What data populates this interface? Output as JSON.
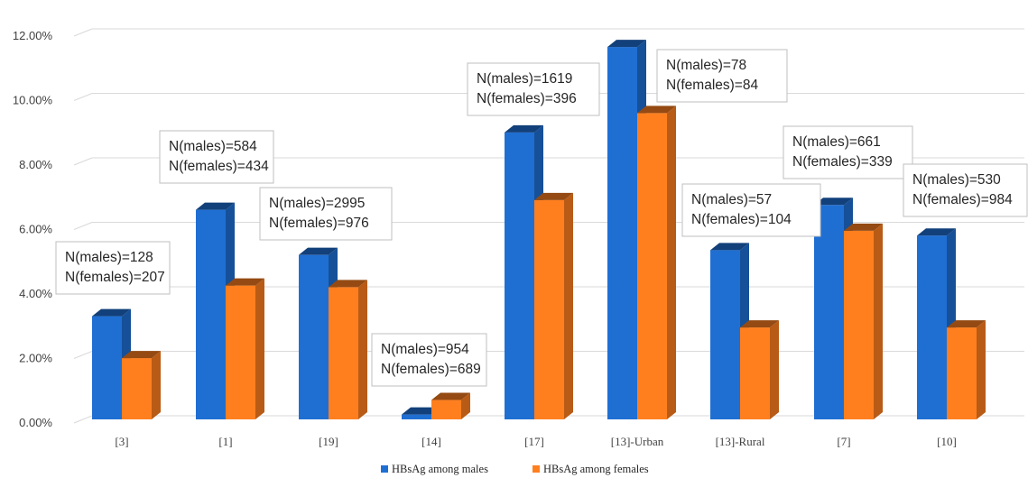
{
  "chart_data": {
    "type": "bar",
    "categories": [
      "[3]",
      "[1]",
      "[19]",
      "[14]",
      "[17]",
      "[13]-Urban",
      "[13]-Rural",
      "[7]",
      "[10]"
    ],
    "series": [
      {
        "name": "HBsAg among males",
        "color": "#1F6FD3",
        "values": [
          3.2,
          6.5,
          5.1,
          0.15,
          8.9,
          11.55,
          5.25,
          6.65,
          5.7
        ]
      },
      {
        "name": "HBsAg among females",
        "color": "#FF7F1F",
        "values": [
          1.9,
          4.15,
          4.1,
          0.6,
          6.8,
          9.5,
          2.85,
          5.85,
          2.85
        ]
      }
    ],
    "y_ticks": [
      "0.00%",
      "2.00%",
      "4.00%",
      "6.00%",
      "8.00%",
      "10.00%",
      "12.00%"
    ],
    "ylim": [
      0,
      12
    ],
    "grid": true,
    "legend_position": "bottom",
    "annotations": [
      {
        "category": "[3]",
        "lines": [
          "N(males)=128",
          "N(females)=207"
        ]
      },
      {
        "category": "[1]",
        "lines": [
          "N(males)=584",
          "N(females)=434"
        ]
      },
      {
        "category": "[19]",
        "lines": [
          "N(males)=2995",
          "N(females)=976"
        ]
      },
      {
        "category": "[14]",
        "lines": [
          "N(males)=954",
          "N(females)=689"
        ]
      },
      {
        "category": "[17]",
        "lines": [
          "N(males)=1619",
          "N(females)=396"
        ]
      },
      {
        "category": "[13]-Urban",
        "lines": [
          "N(males)=78",
          "N(females)=84"
        ]
      },
      {
        "category": "[13]-Rural",
        "lines": [
          "N(males)=57",
          "N(females)=104"
        ]
      },
      {
        "category": "[7]",
        "lines": [
          "N(males)=661",
          "N(females)=339"
        ]
      },
      {
        "category": "[10]",
        "lines": [
          "N(males)=530",
          "N(females)=984"
        ]
      }
    ]
  }
}
